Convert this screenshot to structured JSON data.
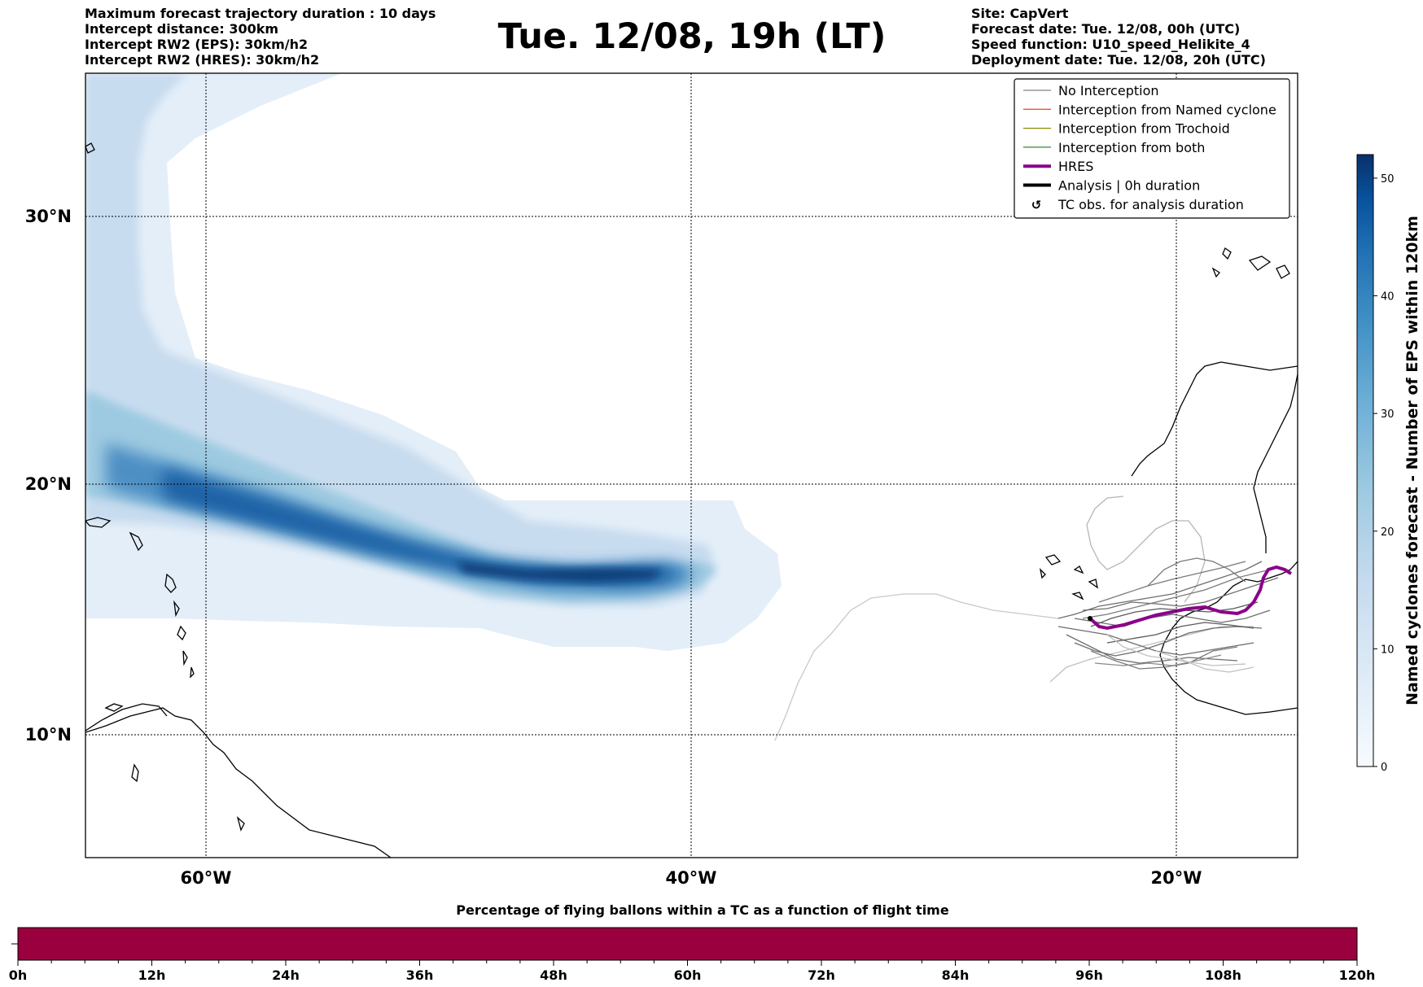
{
  "header": {
    "left_lines": [
      "Maximum forecast trajectory duration : 10 days",
      "Intercept distance: 300km",
      "Intercept RW2 (EPS):  30km/h2",
      "Intercept RW2 (HRES): 30km/h2"
    ],
    "title": "Tue. 12/08, 19h (LT)",
    "right_lines": [
      "Site: CapVert",
      "Forecast date: Tue. 12/08, 00h (UTC)",
      "Speed function: U10_speed_Helikite_4",
      "Deployment date: Tue. 12/08, 20h (UTC)"
    ]
  },
  "map": {
    "lat_labels": [
      "30°N",
      "20°N",
      "10°N"
    ],
    "lon_labels": [
      "60°W",
      "40°W",
      "20°W"
    ],
    "gridlines": "dotted"
  },
  "legend": {
    "items": [
      {
        "label": "No Interception",
        "color": "#808080",
        "style": "thin-line"
      },
      {
        "label": "Interception from Named cyclone",
        "color": "#e8592a",
        "style": "thin-line"
      },
      {
        "label": "Interception from Trochoid",
        "color": "#8b8b00",
        "style": "thin-line"
      },
      {
        "label": "Interception from both",
        "color": "#2e8b2e",
        "style": "thin-line"
      },
      {
        "label": "HRES",
        "color": "#8b008b",
        "style": "thick-line"
      },
      {
        "label": "Analysis | 0h duration",
        "color": "#000000",
        "style": "thick-line"
      },
      {
        "label": "TC obs. for analysis duration",
        "color": "#000000",
        "style": "cyclone-icon"
      }
    ]
  },
  "colorbar": {
    "label": "Named cyclones forecast - Number of EPS within 120km",
    "ticks": [
      "0",
      "10",
      "20",
      "30",
      "40",
      "50"
    ],
    "range": [
      0,
      52
    ],
    "cmap": "Blues"
  },
  "progress_bar": {
    "title": "Percentage of flying ballons within a TC as a function of flight time",
    "ticks": [
      "0h",
      "12h",
      "24h",
      "36h",
      "48h",
      "60h",
      "72h",
      "84h",
      "96h",
      "108h",
      "120h"
    ],
    "fill_color": "#99003d",
    "fill_fraction": 1.0
  }
}
